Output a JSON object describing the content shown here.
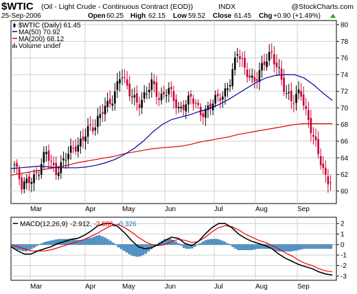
{
  "header": {
    "symbol": "$WTIC",
    "description": "(Oil - Light Crude - Continuous Contract (EOD))",
    "exchange": "INDX",
    "watermark": "@StockCharts.com",
    "date": "25-Sep-2006",
    "open_label": "Open",
    "open": "60.25",
    "high_label": "High",
    "high": "62.15",
    "low_label": "Low",
    "low": "59.52",
    "close_label": "Close",
    "close": "61.45",
    "chg_label": "Chg",
    "chg": "+0.90 (+1.49%)",
    "chg_arrow": "up-triangle-icon"
  },
  "legend": {
    "price": "$WTIC (Daily) 61.45",
    "ma50": "MA(50) 70.92",
    "ma200": "MA(200) 68.12",
    "volume": "Volume undef"
  },
  "macd_legend": {
    "label": "MACD(12,26,9)",
    "macd": "-2.912",
    "sep1": ", ",
    "signal": "-2.586",
    "sep2": ", ",
    "hist": "-0.326"
  },
  "colors": {
    "up": "#000000",
    "down": "#cc0033",
    "ma50": "#000099",
    "ma200": "#dd0000",
    "macd_line": "#000000",
    "signal_line": "#ee0000",
    "histogram": "#4f95c8",
    "histogram_edge": "#1f5f99",
    "grid": "#cfcfcf",
    "macd_signal_text": "#ee0000",
    "macd_hist_text": "#1f6fb5"
  },
  "chart_data": [
    {
      "type": "candlestick",
      "title": "$WTIC (Oil - Light Crude - Continuous Contract (EOD)) INDX",
      "x_labels": [
        "Mar",
        "Apr",
        "May",
        "Jun",
        "Jul",
        "Aug",
        "Sep"
      ],
      "y_ticks": [
        60,
        62,
        64,
        66,
        68,
        70,
        72,
        74,
        76,
        78,
        80
      ],
      "ylim": [
        58.5,
        80.5
      ],
      "grid": true,
      "y_axis": "right",
      "latest": {
        "open": 60.25,
        "high": 62.15,
        "low": 59.52,
        "close": 61.45
      },
      "series": [
        {
          "name": "MA(50)",
          "values": [
            62.7,
            62.8,
            62.9,
            63.0,
            62.9,
            62.8,
            62.8,
            62.8,
            62.9,
            63.1,
            63.4,
            63.8,
            64.4,
            65.1,
            66.0,
            67.1,
            68.0,
            68.6,
            68.9,
            69.2,
            69.6,
            69.9,
            70.4,
            71.0,
            71.7,
            72.4,
            73.1,
            73.6,
            73.9,
            74.0,
            74.0,
            73.6,
            72.8,
            71.8,
            70.9
          ]
        },
        {
          "name": "MA(200)",
          "values": [
            61.9,
            62.1,
            62.3,
            62.5,
            62.7,
            62.9,
            63.1,
            63.4,
            63.6,
            63.8,
            64.0,
            64.2,
            64.5,
            64.7,
            64.9,
            65.1,
            65.2,
            65.3,
            65.4,
            65.6,
            65.9,
            66.1,
            66.3,
            66.5,
            66.8,
            67.0,
            67.2,
            67.4,
            67.6,
            67.8,
            68.0,
            68.1,
            68.1,
            68.1,
            68.1
          ]
        }
      ]
    },
    {
      "type": "line",
      "title": "MACD(12,26,9) -2.912, -2.586, -0.326",
      "x_labels": [
        "Mar",
        "Apr",
        "May",
        "Jun",
        "Jul",
        "Aug",
        "Sep"
      ],
      "y_ticks": [
        -3,
        -2,
        -1,
        0,
        1,
        2
      ],
      "ylim": [
        -3.4,
        2.6
      ],
      "y_axis": "right",
      "series": [
        {
          "name": "MACD",
          "values": [
            -0.2,
            -0.6,
            -0.9,
            -0.9,
            -0.6,
            -0.4,
            -0.2,
            0.1,
            0.3,
            0.5,
            0.6,
            0.9,
            1.3,
            1.8,
            2.0,
            2.0,
            1.7,
            1.1,
            0.4,
            -0.2,
            -0.4,
            -0.3,
            0.0,
            0.4,
            0.7,
            0.6,
            0.1,
            -0.1,
            0.3,
            1.0,
            1.6,
            2.0,
            2.0,
            1.6,
            1.0,
            0.6,
            0.3,
            0.1,
            -0.1,
            -0.4,
            -0.9,
            -1.3,
            -1.6,
            -1.9,
            -2.1,
            -2.3,
            -2.6,
            -2.8,
            -2.9
          ]
        },
        {
          "name": "Signal",
          "values": [
            0.0,
            -0.2,
            -0.4,
            -0.6,
            -0.6,
            -0.6,
            -0.5,
            -0.3,
            -0.1,
            0.1,
            0.3,
            0.5,
            0.8,
            1.1,
            1.5,
            1.8,
            1.9,
            1.6,
            1.2,
            0.7,
            0.3,
            0.0,
            -0.1,
            0.0,
            0.3,
            0.5,
            0.4,
            0.2,
            0.3,
            0.7,
            1.2,
            1.6,
            1.8,
            1.7,
            1.4,
            1.0,
            0.7,
            0.4,
            0.2,
            -0.1,
            -0.4,
            -0.8,
            -1.1,
            -1.5,
            -1.8,
            -2.0,
            -2.3,
            -2.5,
            -2.6
          ]
        }
      ]
    }
  ]
}
